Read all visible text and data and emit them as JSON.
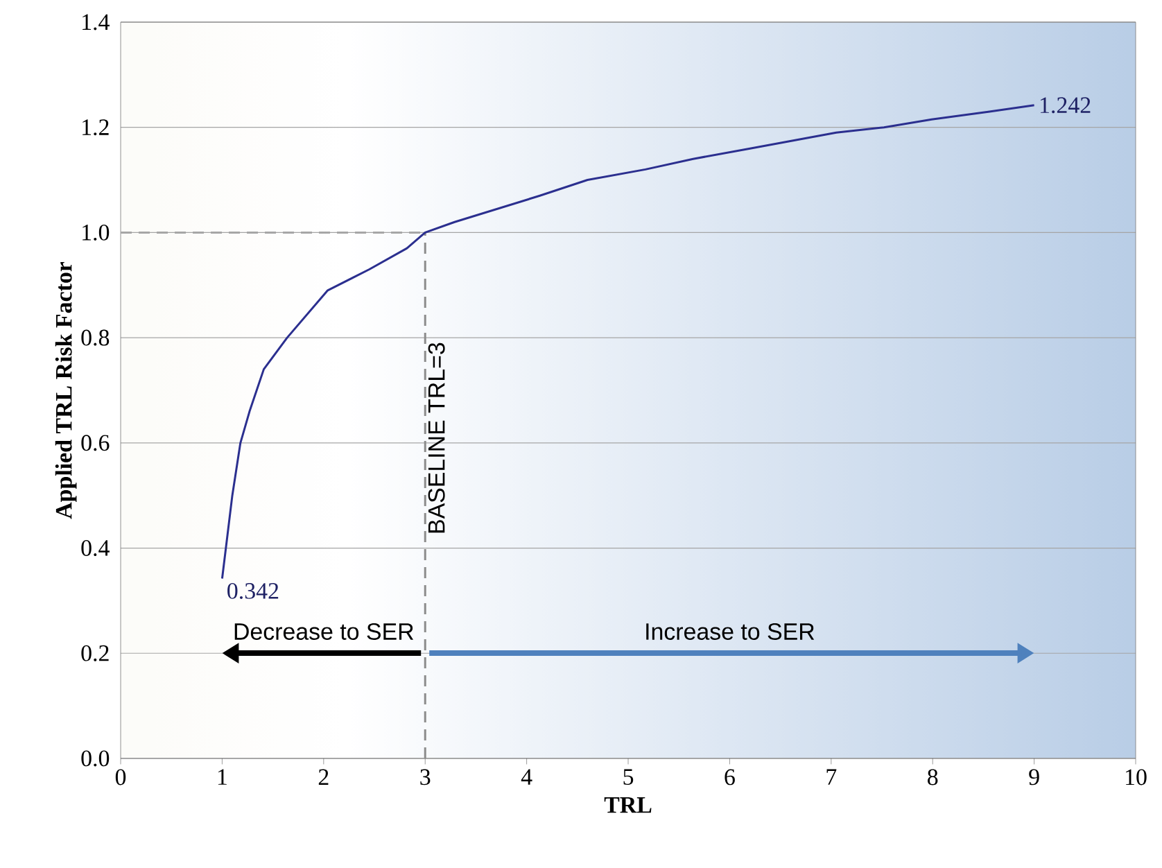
{
  "chart_data": {
    "type": "line",
    "xlabel": "TRL",
    "ylabel": "Applied TRL Risk Factor",
    "xlim": [
      0,
      10
    ],
    "ylim": [
      0,
      1.4
    ],
    "xticks": [
      0,
      1,
      2,
      3,
      4,
      5,
      6,
      7,
      8,
      9,
      10
    ],
    "yticks": [
      {
        "value": 0,
        "label": "0.0"
      },
      {
        "value": 0.2,
        "label": "0.2"
      },
      {
        "value": 0.4,
        "label": "0.4"
      },
      {
        "value": 0.6,
        "label": "0.6"
      },
      {
        "value": 0.8,
        "label": "0.8"
      },
      {
        "value": 1.0,
        "label": "1.0"
      },
      {
        "value": 1.2,
        "label": "1.2"
      },
      {
        "value": 1.4,
        "label": "1.4"
      }
    ],
    "grid": "y",
    "series": [
      {
        "color": "#2b2f8f",
        "x": [
          1.0,
          1.1,
          1.18,
          1.27,
          1.41,
          1.64,
          2.04,
          2.45,
          2.82,
          3.0,
          3.29,
          4.13,
          4.6,
          5.17,
          5.64,
          6.21,
          7.05,
          7.52,
          7.99,
          8.56,
          9.0
        ],
        "values": [
          0.342,
          0.5,
          0.6,
          0.66,
          0.74,
          0.8,
          0.89,
          0.93,
          0.97,
          1.0,
          1.02,
          1.07,
          1.1,
          1.12,
          1.14,
          1.16,
          1.19,
          1.2,
          1.215,
          1.23,
          1.242
        ],
        "value_labels": [
          "0.342",
          null,
          null,
          null,
          null,
          null,
          null,
          null,
          null,
          null,
          null,
          null,
          null,
          null,
          null,
          null,
          null,
          null,
          null,
          null,
          "1.242"
        ]
      }
    ],
    "ref_lines": [
      {
        "axis": "x",
        "value": 3,
        "label": "BASELINE TRL=3",
        "color": "#8c8c8c",
        "line_style": "dashed"
      },
      {
        "axis": "y",
        "value": 1.0,
        "color": "#a6a6a6",
        "line_style": "dashed"
      }
    ],
    "annotations": [
      "Decrease to SER",
      "Increase to SER"
    ]
  }
}
